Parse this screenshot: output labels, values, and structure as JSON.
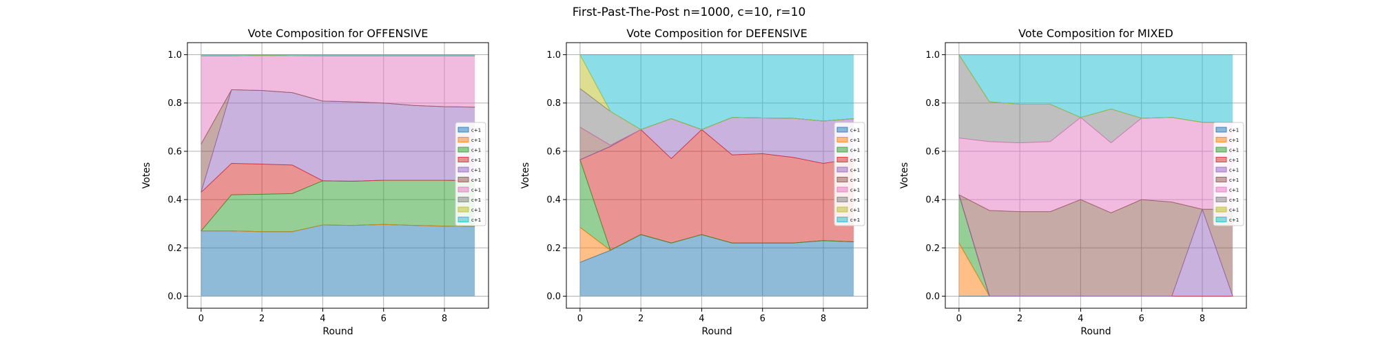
{
  "suptitle": "First-Past-The-Post n=1000, c=10, r=10",
  "chart_data": [
    {
      "type": "area",
      "title": "Vote Composition for OFFENSIVE",
      "xlabel": "Round",
      "ylabel": "Votes",
      "xlim": [
        -0.45,
        9.45
      ],
      "ylim": [
        -0.05,
        1.05
      ],
      "xticks": [
        0,
        2,
        4,
        6,
        8
      ],
      "yticks": [
        0.0,
        0.2,
        0.4,
        0.6,
        0.8,
        1.0
      ],
      "ytick_labels": [
        "0.0",
        "0.2",
        "0.4",
        "0.6",
        "0.8",
        "1.0"
      ],
      "grid": true,
      "legend": "right",
      "x": [
        0,
        1,
        2,
        3,
        4,
        5,
        6,
        7,
        8,
        9
      ],
      "series": [
        {
          "name": "c+1",
          "color": "#1f77b4",
          "values": [
            0.27,
            0.27,
            0.267,
            0.267,
            0.295,
            0.293,
            0.297,
            0.293,
            0.29,
            0.288
          ]
        },
        {
          "name": "c+1",
          "color": "#ff7f0e",
          "values": [
            0,
            0,
            0,
            0,
            0,
            0,
            0,
            0,
            0,
            0
          ]
        },
        {
          "name": "c+1",
          "color": "#2ca02c",
          "values": [
            0,
            0.15,
            0.155,
            0.158,
            0.183,
            0.183,
            0.183,
            0.187,
            0.19,
            0.19
          ]
        },
        {
          "name": "c+1",
          "color": "#d62728",
          "values": [
            0.16,
            0.13,
            0.125,
            0.118,
            0,
            0,
            0,
            0,
            0,
            0
          ]
        },
        {
          "name": "c+1",
          "color": "#9467bd",
          "values": [
            0,
            0.305,
            0.305,
            0.3,
            0.33,
            0.329,
            0.32,
            0.31,
            0.305,
            0.305
          ]
        },
        {
          "name": "c+1",
          "color": "#8c564b",
          "values": [
            0.2,
            0,
            0,
            0,
            0,
            0,
            0,
            0,
            0,
            0
          ]
        },
        {
          "name": "c+1",
          "color": "#e377c2",
          "values": [
            0.365,
            0.14,
            0.145,
            0.153,
            0.187,
            0.19,
            0.195,
            0.205,
            0.21,
            0.212
          ]
        },
        {
          "name": "c+1",
          "color": "#7f7f7f",
          "values": [
            0,
            0,
            0,
            0,
            0,
            0,
            0,
            0,
            0,
            0
          ]
        },
        {
          "name": "c+1",
          "color": "#bcbd22",
          "values": [
            0,
            0,
            0,
            0,
            0,
            0,
            0,
            0,
            0,
            0
          ]
        },
        {
          "name": "c+1",
          "color": "#17becf",
          "values": [
            0.005,
            0.005,
            0.003,
            0.004,
            0.005,
            0.005,
            0.005,
            0.005,
            0.005,
            0.005
          ]
        }
      ]
    },
    {
      "type": "area",
      "title": "Vote Composition for DEFENSIVE",
      "xlabel": "Round",
      "ylabel": "Votes",
      "xlim": [
        -0.45,
        9.45
      ],
      "ylim": [
        -0.05,
        1.05
      ],
      "xticks": [
        0,
        2,
        4,
        6,
        8
      ],
      "yticks": [
        0.0,
        0.2,
        0.4,
        0.6,
        0.8,
        1.0
      ],
      "ytick_labels": [
        "0.0",
        "0.2",
        "0.4",
        "0.6",
        "0.8",
        "1.0"
      ],
      "grid": true,
      "legend": "right",
      "x": [
        0,
        1,
        2,
        3,
        4,
        5,
        6,
        7,
        8,
        9
      ],
      "series": [
        {
          "name": "c+1",
          "color": "#1f77b4",
          "values": [
            0.14,
            0.19,
            0.255,
            0.22,
            0.255,
            0.22,
            0.22,
            0.22,
            0.23,
            0.225
          ]
        },
        {
          "name": "c+1",
          "color": "#ff7f0e",
          "values": [
            0.145,
            0,
            0,
            0,
            0,
            0,
            0,
            0,
            0,
            0
          ]
        },
        {
          "name": "c+1",
          "color": "#2ca02c",
          "values": [
            0.28,
            0,
            0,
            0,
            0,
            0,
            0,
            0,
            0,
            0
          ]
        },
        {
          "name": "c+1",
          "color": "#d62728",
          "values": [
            0,
            0.43,
            0.435,
            0.35,
            0.435,
            0.365,
            0.37,
            0.355,
            0.32,
            0.345
          ]
        },
        {
          "name": "c+1",
          "color": "#9467bd",
          "values": [
            0,
            0,
            0,
            0.165,
            0,
            0.155,
            0.148,
            0.162,
            0.175,
            0.165
          ]
        },
        {
          "name": "c+1",
          "color": "#8c564b",
          "values": [
            0.135,
            0.005,
            0,
            0,
            0,
            0,
            0,
            0,
            0,
            0
          ]
        },
        {
          "name": "c+1",
          "color": "#e377c2",
          "values": [
            0,
            0,
            0,
            0,
            0,
            0,
            0,
            0,
            0,
            0
          ]
        },
        {
          "name": "c+1",
          "color": "#7f7f7f",
          "values": [
            0.16,
            0.14,
            0,
            0,
            0,
            0,
            0,
            0,
            0,
            0
          ]
        },
        {
          "name": "c+1",
          "color": "#bcbd22",
          "values": [
            0.14,
            0,
            0,
            0,
            0,
            0,
            0,
            0,
            0,
            0
          ]
        },
        {
          "name": "c+1",
          "color": "#17becf",
          "values": [
            0,
            0.235,
            0.31,
            0.265,
            0.31,
            0.26,
            0.262,
            0.263,
            0.275,
            0.265
          ]
        }
      ]
    },
    {
      "type": "area",
      "title": "Vote Composition for MIXED",
      "xlabel": "Round",
      "ylabel": "Votes",
      "xlim": [
        -0.45,
        9.45
      ],
      "ylim": [
        -0.05,
        1.05
      ],
      "xticks": [
        0,
        2,
        4,
        6,
        8
      ],
      "yticks": [
        0.0,
        0.2,
        0.4,
        0.6,
        0.8,
        1.0
      ],
      "ytick_labels": [
        "0.0",
        "0.2",
        "0.4",
        "0.6",
        "0.8",
        "1.0"
      ],
      "grid": true,
      "legend": "right",
      "x": [
        0,
        1,
        2,
        3,
        4,
        5,
        6,
        7,
        8,
        9
      ],
      "series": [
        {
          "name": "c+1",
          "color": "#1f77b4",
          "values": [
            0,
            0,
            0,
            0,
            0,
            0,
            0,
            0,
            0,
            0
          ]
        },
        {
          "name": "c+1",
          "color": "#ff7f0e",
          "values": [
            0.22,
            0,
            0,
            0,
            0,
            0,
            0,
            0,
            0,
            0
          ]
        },
        {
          "name": "c+1",
          "color": "#2ca02c",
          "values": [
            0.2,
            0,
            0,
            0,
            0,
            0,
            0,
            0,
            0,
            0
          ]
        },
        {
          "name": "c+1",
          "color": "#d62728",
          "values": [
            0,
            0,
            0,
            0,
            0,
            0,
            0,
            0,
            0,
            0
          ]
        },
        {
          "name": "c+1",
          "color": "#9467bd",
          "values": [
            0,
            0,
            0,
            0,
            0,
            0,
            0,
            0,
            0.36,
            0
          ]
        },
        {
          "name": "c+1",
          "color": "#8c564b",
          "values": [
            0,
            0.355,
            0.35,
            0.35,
            0.4,
            0.345,
            0.4,
            0.39,
            0,
            0.36
          ]
        },
        {
          "name": "c+1",
          "color": "#e377c2",
          "values": [
            0.235,
            0.285,
            0.285,
            0.29,
            0.34,
            0.29,
            0.337,
            0.35,
            0.36,
            0.36
          ]
        },
        {
          "name": "c+1",
          "color": "#7f7f7f",
          "values": [
            0.345,
            0.165,
            0.16,
            0.155,
            0,
            0.14,
            0,
            0,
            0,
            0
          ]
        },
        {
          "name": "c+1",
          "color": "#bcbd22",
          "values": [
            0,
            0,
            0,
            0,
            0,
            0,
            0,
            0,
            0,
            0
          ]
        },
        {
          "name": "c+1",
          "color": "#17becf",
          "values": [
            0,
            0.195,
            0.205,
            0.205,
            0.26,
            0.225,
            0.263,
            0.26,
            0.28,
            0.28
          ]
        }
      ]
    }
  ]
}
